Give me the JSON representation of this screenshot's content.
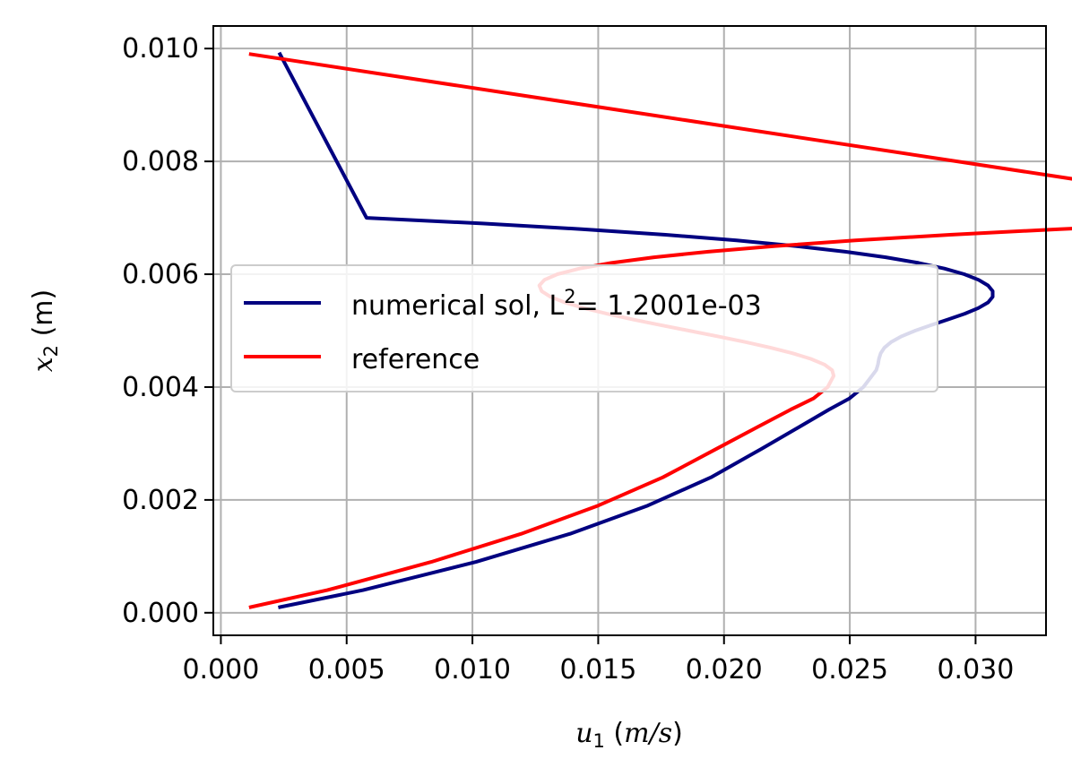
{
  "chart_data": {
    "type": "line",
    "xlabel": {
      "symbol": "u",
      "sub": "1",
      "unit": "m/s"
    },
    "ylabel": {
      "symbol": "x",
      "sub": "2",
      "unit": "m"
    },
    "xlim": [
      -0.0003,
      0.0328
    ],
    "ylim": [
      -0.0004,
      0.0104
    ],
    "x_ticks": [
      "0.000",
      "0.005",
      "0.010",
      "0.015",
      "0.020",
      "0.025",
      "0.030"
    ],
    "y_ticks": [
      "0.000",
      "0.002",
      "0.004",
      "0.006",
      "0.008",
      "0.010"
    ],
    "grid": true,
    "legend_position": "center-left",
    "series": [
      {
        "name": "numerical sol, L",
        "name_sup": "2",
        "name_suffix": "= 1.2001e-03",
        "color": "#000080",
        "x": [
          0.00235,
          0.00565,
          0.01014,
          0.01388,
          0.01697,
          0.01948,
          0.02147,
          0.02302,
          0.02417,
          0.02499,
          0.02554,
          0.02588,
          0.02605,
          0.02612,
          0.02616,
          0.02623,
          0.02638,
          0.02665,
          0.02706,
          0.0276,
          0.02824,
          0.02892,
          0.02957,
          0.03011,
          0.0305,
          0.03068,
          0.03068,
          0.0305,
          0.03012,
          0.02955,
          0.02876,
          0.02773,
          0.02643,
          0.02482,
          0.02286,
          0.0205,
          0.01768,
          0.01434,
          0.0104,
          0.00579,
          0.00235
        ],
        "y": [
          0.0001,
          0.0004,
          0.0009,
          0.0014,
          0.0019,
          0.0024,
          0.0029,
          0.0033,
          0.0036,
          0.0038,
          0.004,
          0.0042,
          0.0043,
          0.0044,
          0.0045,
          0.0046,
          0.0047,
          0.0048,
          0.0049,
          0.005,
          0.0051,
          0.0052,
          0.0053,
          0.0054,
          0.0055,
          0.0056,
          0.0057,
          0.0058,
          0.0059,
          0.006,
          0.0061,
          0.0062,
          0.0063,
          0.0064,
          0.0065,
          0.0066,
          0.0067,
          0.0068,
          0.0069,
          0.007,
          0.0099
        ]
      },
      {
        "name": "reference",
        "color": "#ff0000",
        "x": [
          0.00119,
          0.00423,
          0.00836,
          0.01194,
          0.015,
          0.01757,
          0.01968,
          0.02137,
          0.02265,
          0.02356,
          0.02412,
          0.02436,
          0.0243,
          0.02399,
          0.02345,
          0.02272,
          0.02184,
          0.02083,
          0.01974,
          0.0186,
          0.01746,
          0.01636,
          0.01534,
          0.01443,
          0.01367,
          0.0131,
          0.01275,
          0.01266,
          0.01286,
          0.01338,
          0.01426,
          0.01553,
          0.01722,
          0.01938,
          0.02203,
          0.02522,
          0.02898,
          0.03334,
          0.03835,
          0.04405,
          0.00119
        ],
        "y": [
          0.0001,
          0.0004,
          0.0009,
          0.0014,
          0.0019,
          0.0024,
          0.0029,
          0.0033,
          0.0036,
          0.0038,
          0.004,
          0.0042,
          0.0043,
          0.0044,
          0.0045,
          0.0046,
          0.0047,
          0.0048,
          0.0049,
          0.005,
          0.0051,
          0.0052,
          0.0053,
          0.0054,
          0.0055,
          0.0056,
          0.0057,
          0.0058,
          0.0059,
          0.006,
          0.0061,
          0.0062,
          0.0063,
          0.0064,
          0.0065,
          0.0066,
          0.0067,
          0.0068,
          0.0069,
          0.007,
          0.0099
        ]
      }
    ]
  }
}
